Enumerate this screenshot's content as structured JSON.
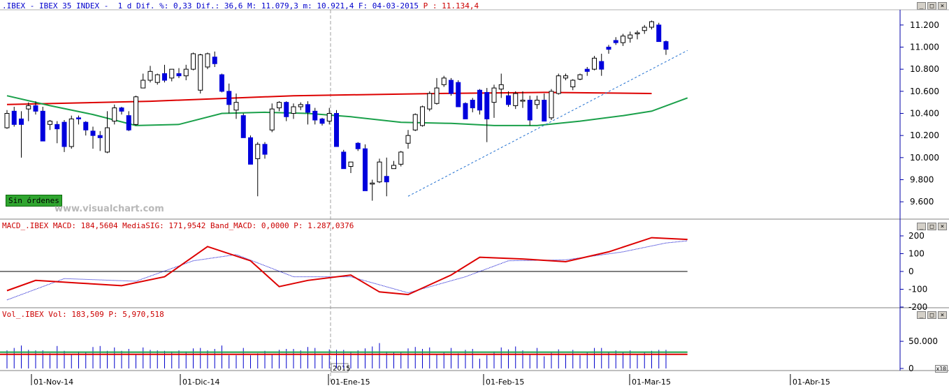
{
  "price_panel": {
    "header_prefix": ".IBEX - IBEX 35 INDEX -  1 d Dif. %: 0,33 Dif.: 36,6 M: 11.079,3 m: 10.921,4 F: 04-03-2015 ",
    "header_p": "P : 11.134,4",
    "badge": "Sin órdenes",
    "watermark": "www.visualchart.com"
  },
  "macd_panel": {
    "header_prefix": "MACD_.IBEX MACD: 184,5604 MediaSIG: 171,9542 Band_MACD: 0,0000 ",
    "header_p": "P: 1.287,0376"
  },
  "vol_panel": {
    "header_prefix": "Vol_.IBEX Vol: 183,509 ",
    "header_p": "P: 5,970,518",
    "multiplier": "x10"
  },
  "window_buttons": [
    "_",
    "□",
    "×"
  ],
  "year_marker": "2015",
  "colors": {
    "up": "#ffffff",
    "down": "#0000dd",
    "ma_red": "#dd0000",
    "ma_green": "#1aa04a",
    "macd": "#dd0000",
    "signal": "#0000cc",
    "axis": "#0000aa",
    "trend": "#1f6fd0"
  },
  "chart_data": [
    {
      "type": "candlestick",
      "title": "IBEX 35 INDEX",
      "yticks": [
        "11.200",
        "11.000",
        "10.800",
        "10.600",
        "10.400",
        "10.200",
        "10.000",
        "9.800",
        "9.600"
      ],
      "ylim": [
        9500,
        11300
      ],
      "xticks": [
        "01-Nov-14",
        "01-Dic-14",
        "01-Ene-15",
        "01-Feb-15",
        "01-Mar-15",
        "01-Abr-15"
      ],
      "ohlc": [
        [
          10270,
          10430,
          10260,
          10400
        ],
        [
          10420,
          10460,
          10280,
          10300
        ],
        [
          10350,
          10420,
          10000,
          10300
        ],
        [
          10440,
          10500,
          10330,
          10470
        ],
        [
          10470,
          10510,
          10390,
          10420
        ],
        [
          10420,
          10460,
          10150,
          10150
        ],
        [
          10300,
          10340,
          10250,
          10330
        ],
        [
          10300,
          10330,
          10130,
          10260
        ],
        [
          10320,
          10340,
          10050,
          10100
        ],
        [
          10100,
          10380,
          10080,
          10350
        ],
        [
          10360,
          10380,
          10300,
          10350
        ],
        [
          10320,
          10330,
          10200,
          10250
        ],
        [
          10240,
          10280,
          10080,
          10200
        ],
        [
          10200,
          10240,
          10060,
          10180
        ],
        [
          10050,
          10420,
          10040,
          10270
        ],
        [
          10330,
          10480,
          10300,
          10450
        ],
        [
          10450,
          10460,
          10390,
          10420
        ],
        [
          10380,
          10420,
          10240,
          10250
        ],
        [
          10300,
          10560,
          10290,
          10550
        ],
        [
          10630,
          10760,
          10630,
          10700
        ],
        [
          10700,
          10830,
          10680,
          10780
        ],
        [
          10680,
          10760,
          10660,
          10750
        ],
        [
          10760,
          10840,
          10680,
          10700
        ],
        [
          10720,
          10800,
          10690,
          10800
        ],
        [
          10760,
          10810,
          10720,
          10740
        ],
        [
          10740,
          10840,
          10700,
          10800
        ],
        [
          10800,
          10950,
          10790,
          10940
        ],
        [
          10610,
          10940,
          10580,
          10930
        ],
        [
          10820,
          10950,
          10800,
          10940
        ],
        [
          10910,
          10960,
          10820,
          10850
        ],
        [
          10750,
          10760,
          10590,
          10600
        ],
        [
          10600,
          10670,
          10400,
          10480
        ],
        [
          10430,
          10580,
          10350,
          10500
        ],
        [
          10380,
          10400,
          10180,
          10180
        ],
        [
          10180,
          10200,
          9940,
          9940
        ],
        [
          9990,
          10140,
          9650,
          10120
        ],
        [
          10120,
          10140,
          9990,
          10030
        ],
        [
          10250,
          10490,
          10230,
          10440
        ],
        [
          10450,
          10510,
          10420,
          10500
        ],
        [
          10500,
          10510,
          10330,
          10370
        ],
        [
          10400,
          10490,
          10350,
          10460
        ],
        [
          10460,
          10500,
          10430,
          10480
        ],
        [
          10480,
          10510,
          10300,
          10410
        ],
        [
          10420,
          10450,
          10300,
          10340
        ],
        [
          10350,
          10360,
          10290,
          10310
        ],
        [
          10330,
          10450,
          10300,
          10400
        ],
        [
          10400,
          10430,
          10100,
          10100
        ],
        [
          10050,
          10070,
          9900,
          9900
        ],
        [
          9920,
          9960,
          9860,
          9960
        ],
        [
          10130,
          10140,
          10060,
          10080
        ],
        [
          10080,
          10120,
          9700,
          9700
        ],
        [
          9760,
          9800,
          9610,
          9770
        ],
        [
          9780,
          9990,
          9770,
          9960
        ],
        [
          9830,
          10000,
          9650,
          9780
        ],
        [
          9900,
          9970,
          9900,
          9930
        ],
        [
          9940,
          10060,
          9920,
          10050
        ],
        [
          10130,
          10250,
          10080,
          10200
        ],
        [
          10250,
          10400,
          10240,
          10390
        ],
        [
          10290,
          10470,
          10280,
          10460
        ],
        [
          10440,
          10600,
          10420,
          10580
        ],
        [
          10490,
          10720,
          10480,
          10630
        ],
        [
          10660,
          10740,
          10640,
          10720
        ],
        [
          10700,
          10720,
          10560,
          10580
        ],
        [
          10680,
          10700,
          10460,
          10460
        ],
        [
          10490,
          10500,
          10350,
          10350
        ],
        [
          10520,
          10540,
          10410,
          10450
        ],
        [
          10610,
          10620,
          10390,
          10430
        ],
        [
          10590,
          10630,
          10140,
          10350
        ],
        [
          10500,
          10660,
          10360,
          10630
        ],
        [
          10620,
          10760,
          10540,
          10660
        ],
        [
          10560,
          10600,
          10460,
          10480
        ],
        [
          10470,
          10600,
          10440,
          10580
        ],
        [
          10510,
          10600,
          10450,
          10520
        ],
        [
          10520,
          10560,
          10290,
          10340
        ],
        [
          10480,
          10560,
          10440,
          10520
        ],
        [
          10520,
          10580,
          10330,
          10330
        ],
        [
          10360,
          10620,
          10340,
          10600
        ],
        [
          10580,
          10760,
          10570,
          10740
        ],
        [
          10720,
          10760,
          10700,
          10740
        ],
        [
          10640,
          10710,
          10610,
          10700
        ],
        [
          10710,
          10760,
          10700,
          10750
        ],
        [
          10800,
          10820,
          10740,
          10780
        ],
        [
          10800,
          10920,
          10790,
          10900
        ],
        [
          10870,
          10940,
          10740,
          10800
        ],
        [
          11000,
          11020,
          10940,
          10980
        ],
        [
          11060,
          11090,
          11020,
          11040
        ],
        [
          11040,
          11120,
          11010,
          11100
        ],
        [
          11080,
          11140,
          11040,
          11110
        ],
        [
          11120,
          11150,
          11070,
          11130
        ],
        [
          11150,
          11200,
          11120,
          11180
        ],
        [
          11180,
          11240,
          11160,
          11230
        ],
        [
          11200,
          11220,
          11050,
          11050
        ],
        [
          11050,
          11060,
          10930,
          10980
        ]
      ],
      "sma_red_points": [
        [
          0,
          10480
        ],
        [
          20,
          10510
        ],
        [
          40,
          10560
        ],
        [
          60,
          10580
        ],
        [
          75,
          10590
        ],
        [
          90,
          10580
        ]
      ],
      "sma_green_points": [
        [
          0,
          10560
        ],
        [
          6,
          10470
        ],
        [
          12,
          10390
        ],
        [
          18,
          10290
        ],
        [
          24,
          10300
        ],
        [
          30,
          10400
        ],
        [
          36,
          10410
        ],
        [
          42,
          10400
        ],
        [
          48,
          10370
        ],
        [
          55,
          10320
        ],
        [
          62,
          10310
        ],
        [
          68,
          10290
        ],
        [
          74,
          10290
        ],
        [
          80,
          10330
        ],
        [
          86,
          10380
        ],
        [
          90,
          10420
        ],
        [
          95,
          10540
        ]
      ],
      "trendline": [
        [
          9650,
          56
        ],
        [
          10970,
          95
        ]
      ]
    },
    {
      "type": "line",
      "title": "MACD",
      "yticks": [
        "200",
        "100",
        "0",
        "-100",
        "-200"
      ],
      "ylim": [
        -200,
        200
      ],
      "macd_points": [
        [
          0,
          -108
        ],
        [
          4,
          -50
        ],
        [
          10,
          -65
        ],
        [
          16,
          -80
        ],
        [
          22,
          -30
        ],
        [
          28,
          140
        ],
        [
          34,
          60
        ],
        [
          38,
          -85
        ],
        [
          42,
          -50
        ],
        [
          48,
          -20
        ],
        [
          52,
          -115
        ],
        [
          56,
          -130
        ],
        [
          62,
          -20
        ],
        [
          66,
          80
        ],
        [
          72,
          70
        ],
        [
          78,
          55
        ],
        [
          84,
          110
        ],
        [
          90,
          190
        ],
        [
          95,
          180
        ]
      ],
      "signal_points": [
        [
          0,
          -160
        ],
        [
          8,
          -40
        ],
        [
          18,
          -55
        ],
        [
          26,
          60
        ],
        [
          32,
          95
        ],
        [
          40,
          -30
        ],
        [
          48,
          -30
        ],
        [
          56,
          -120
        ],
        [
          64,
          -30
        ],
        [
          70,
          60
        ],
        [
          78,
          65
        ],
        [
          86,
          110
        ],
        [
          92,
          160
        ],
        [
          95,
          172
        ]
      ]
    },
    {
      "type": "bar",
      "title": "Vol",
      "yticks": [
        "50.000",
        "0"
      ],
      "ylim": [
        0,
        90000
      ],
      "values_note": "approximate daily volume per candle",
      "ma_green": 30000,
      "ma_red": 26000
    }
  ]
}
